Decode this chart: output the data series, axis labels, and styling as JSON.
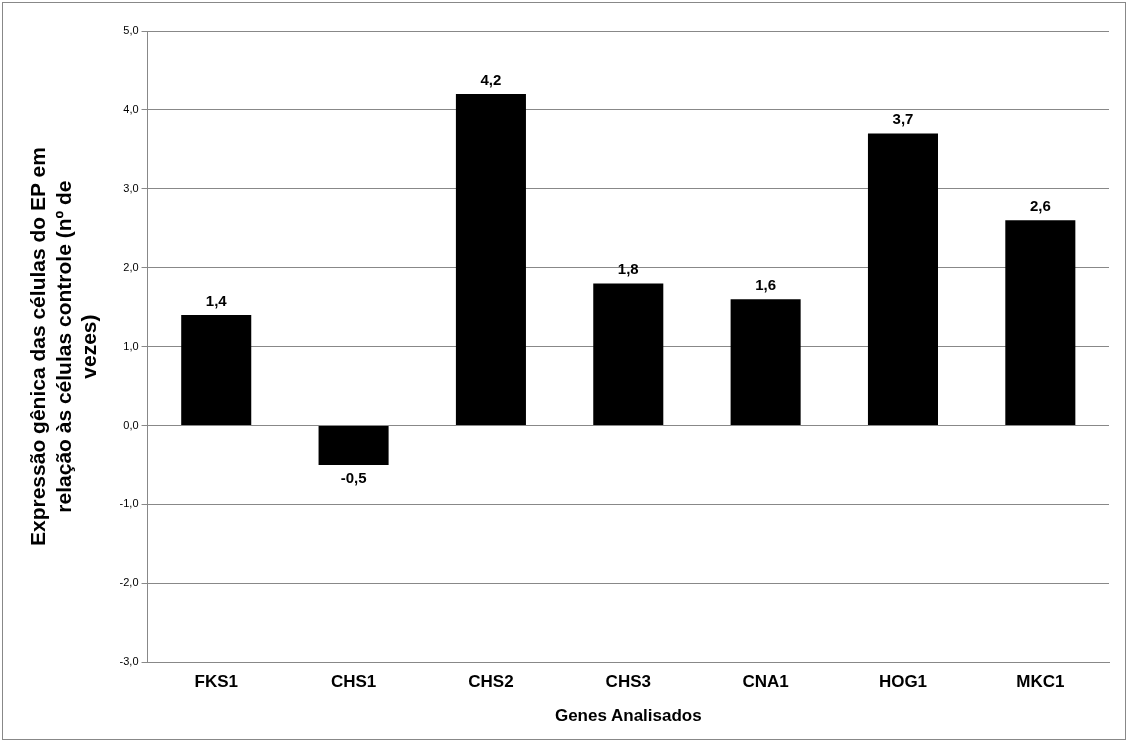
{
  "chart_data": {
    "type": "bar",
    "categories": [
      "FKS1",
      "CHS1",
      "CHS2",
      "CHS3",
      "CNA1",
      "HOG1",
      "MKC1"
    ],
    "values": [
      1.4,
      -0.5,
      4.2,
      1.8,
      1.6,
      3.7,
      2.6
    ],
    "color": "#000000",
    "xlabel": "Genes Analisados",
    "ylabel": "Expressão gênica das células do EP em relação às células controle (nº de vezes)",
    "ylim": [
      -3,
      5
    ],
    "yticks": [
      {
        "value": -3,
        "label": "-3,0"
      },
      {
        "value": -2,
        "label": "-2,0"
      },
      {
        "value": -1,
        "label": "-1,0"
      },
      {
        "value": 0,
        "label": "0,0"
      },
      {
        "value": 1,
        "label": "1,0"
      },
      {
        "value": 2,
        "label": "2,0"
      },
      {
        "value": 3,
        "label": "3,0"
      },
      {
        "value": 4,
        "label": "4,0"
      },
      {
        "value": 5,
        "label": "5,0"
      }
    ],
    "value_labels": [
      "1,4",
      "-0,5",
      "4,2",
      "1,8",
      "1,6",
      "3,7",
      "2,6"
    ],
    "grid": "y",
    "legend": false
  }
}
